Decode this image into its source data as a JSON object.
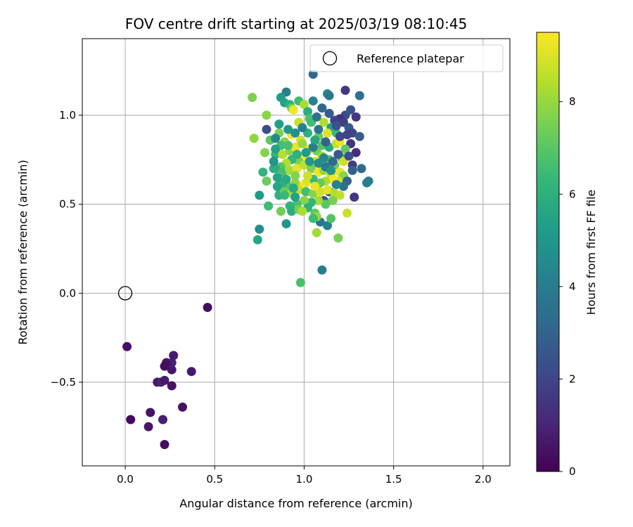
{
  "chart_data": {
    "type": "scatter",
    "title": "FOV centre drift starting at 2025/03/19 08:10:45",
    "xlabel": "Angular distance from reference (arcmin)",
    "ylabel": "Rotation from reference (arcmin)",
    "xlim": [
      -0.24,
      2.15
    ],
    "ylim": [
      -0.97,
      1.43
    ],
    "xticks": [
      0.0,
      0.5,
      1.0,
      1.5,
      2.0
    ],
    "xtick_labels": [
      "0.0",
      "0.5",
      "1.0",
      "1.5",
      "2.0"
    ],
    "yticks": [
      -0.5,
      0.0,
      0.5,
      1.0
    ],
    "ytick_labels": [
      "−0.5",
      "0.0",
      "0.5",
      "1.0"
    ],
    "grid": true,
    "legend_position": "top-right",
    "colorbar": {
      "label": "Hours from first FF file",
      "range": [
        0,
        9.5
      ],
      "ticks": [
        0,
        2,
        4,
        6,
        8
      ],
      "tick_labels": [
        "0",
        "2",
        "4",
        "6",
        "8"
      ],
      "colormap": "viridis"
    },
    "reference": {
      "label": "Reference platepar",
      "x": 0.0,
      "y": 0.0
    },
    "colormap_stops": [
      "#440154",
      "#482878",
      "#3e4989",
      "#31688e",
      "#26828e",
      "#1f9e89",
      "#35b779",
      "#6ece58",
      "#b5de2b",
      "#fde725"
    ],
    "points": [
      [
        0.46,
        -0.08,
        0.35
      ],
      [
        0.01,
        -0.3,
        0.4
      ],
      [
        0.03,
        -0.71,
        0.25
      ],
      [
        0.13,
        -0.75,
        0.55
      ],
      [
        0.14,
        -0.67,
        0.5
      ],
      [
        0.21,
        -0.71,
        0.8
      ],
      [
        0.22,
        -0.85,
        0.3
      ],
      [
        0.32,
        -0.64,
        0.5
      ],
      [
        0.18,
        -0.5,
        0.6
      ],
      [
        0.2,
        -0.5,
        0.9
      ],
      [
        0.22,
        -0.49,
        0.7
      ],
      [
        0.26,
        -0.52,
        0.45
      ],
      [
        0.26,
        -0.43,
        0.6
      ],
      [
        0.23,
        -0.4,
        0.75
      ],
      [
        0.26,
        -0.39,
        0.9
      ],
      [
        0.27,
        -0.35,
        0.7
      ],
      [
        0.37,
        -0.44,
        0.65
      ],
      [
        0.23,
        -0.39,
        0.5
      ],
      [
        0.22,
        -0.41,
        0.3
      ],
      [
        1.05,
        1.23,
        3.2
      ],
      [
        1.23,
        1.14,
        1.6
      ],
      [
        1.31,
        1.11,
        3.4
      ],
      [
        1.13,
        1.12,
        4.4
      ],
      [
        1.14,
        1.11,
        3.8
      ],
      [
        0.9,
        1.13,
        4.1
      ],
      [
        1.05,
        1.08,
        4.3
      ],
      [
        0.87,
        1.1,
        5.2
      ],
      [
        0.71,
        1.1,
        7.6
      ],
      [
        1.23,
        1.0,
        2.2
      ],
      [
        1.26,
        1.03,
        2.5
      ],
      [
        1.29,
        0.99,
        1.5
      ],
      [
        1.2,
        0.98,
        1.3
      ],
      [
        1.22,
        0.96,
        1.8
      ],
      [
        1.17,
        0.97,
        1.9
      ],
      [
        1.25,
        0.93,
        2.6
      ],
      [
        1.27,
        0.9,
        2.0
      ],
      [
        1.31,
        0.88,
        2.8
      ],
      [
        1.26,
        0.84,
        1.4
      ],
      [
        1.29,
        0.79,
        1.2
      ],
      [
        1.27,
        0.72,
        1.7
      ],
      [
        1.32,
        0.7,
        3.3
      ],
      [
        1.36,
        0.63,
        3.9
      ],
      [
        1.35,
        0.62,
        4.0
      ],
      [
        1.28,
        0.54,
        1.5
      ],
      [
        1.14,
        0.57,
        2.1
      ],
      [
        1.11,
        0.52,
        2.4
      ],
      [
        1.09,
        0.4,
        3.6
      ],
      [
        1.13,
        0.38,
        4.2
      ],
      [
        1.1,
        0.13,
        4.1
      ],
      [
        0.9,
        0.39,
        5.0
      ],
      [
        0.75,
        0.36,
        4.7
      ],
      [
        0.74,
        0.3,
        5.6
      ],
      [
        0.75,
        0.55,
        5.2
      ],
      [
        0.79,
        0.92,
        2.2
      ],
      [
        0.98,
        0.06,
        6.7
      ],
      [
        1.07,
        0.34,
        8.2
      ],
      [
        1.15,
        0.42,
        6.9
      ],
      [
        1.19,
        0.31,
        7.5
      ],
      [
        1.24,
        0.45,
        8.8
      ],
      [
        0.72,
        0.87,
        7.9
      ],
      [
        0.78,
        0.79,
        7.7
      ],
      [
        0.79,
        1.0,
        7.8
      ],
      [
        0.81,
        0.86,
        7.1
      ],
      [
        0.8,
        0.49,
        6.5
      ],
      [
        0.77,
        0.68,
        6.2
      ],
      [
        0.79,
        0.63,
        7.3
      ],
      [
        0.86,
        0.59,
        7.0
      ],
      [
        0.87,
        0.46,
        7.4
      ],
      [
        0.86,
        0.55,
        6.0
      ],
      [
        0.83,
        0.7,
        5.8
      ],
      [
        0.84,
        0.78,
        6.3
      ],
      [
        0.86,
        0.9,
        7.6
      ],
      [
        0.89,
        1.07,
        5.5
      ],
      [
        0.92,
        1.06,
        6.1
      ],
      [
        0.93,
        1.04,
        7.2
      ],
      [
        0.97,
        1.08,
        6.5
      ],
      [
        1.0,
        1.06,
        8.3
      ],
      [
        1.02,
        1.02,
        5.9
      ],
      [
        1.03,
        0.98,
        6.8
      ],
      [
        0.94,
        1.03,
        9.3
      ],
      [
        0.97,
        0.96,
        8.7
      ],
      [
        1.04,
        0.96,
        6.6
      ],
      [
        1.11,
        0.96,
        8.4
      ],
      [
        1.15,
        0.93,
        5.3
      ],
      [
        1.18,
        0.9,
        6.4
      ],
      [
        1.13,
        0.9,
        9.0
      ],
      [
        1.08,
        0.88,
        7.2
      ],
      [
        1.02,
        0.9,
        6.0
      ],
      [
        0.98,
        0.86,
        8.9
      ],
      [
        0.93,
        0.89,
        9.4
      ],
      [
        0.89,
        0.85,
        7.7
      ],
      [
        0.87,
        0.83,
        6.6
      ],
      [
        0.84,
        0.81,
        5.4
      ],
      [
        0.88,
        0.78,
        8.5
      ],
      [
        0.92,
        0.8,
        7.8
      ],
      [
        0.95,
        0.82,
        9.2
      ],
      [
        0.99,
        0.84,
        8.0
      ],
      [
        1.03,
        0.81,
        9.1
      ],
      [
        1.07,
        0.8,
        7.4
      ],
      [
        1.1,
        0.83,
        6.9
      ],
      [
        1.14,
        0.82,
        5.7
      ],
      [
        1.18,
        0.84,
        8.6
      ],
      [
        1.2,
        0.85,
        9.3
      ],
      [
        1.23,
        0.81,
        7.1
      ],
      [
        1.21,
        0.76,
        6.2
      ],
      [
        1.22,
        0.74,
        8.8
      ],
      [
        1.17,
        0.72,
        7.3
      ],
      [
        1.14,
        0.75,
        6.8
      ],
      [
        1.1,
        0.77,
        8.1
      ],
      [
        1.06,
        0.74,
        9.0
      ],
      [
        1.0,
        0.76,
        9.4
      ],
      [
        0.97,
        0.74,
        7.5
      ],
      [
        0.93,
        0.75,
        6.3
      ],
      [
        0.9,
        0.73,
        8.4
      ],
      [
        0.87,
        0.71,
        7.0
      ],
      [
        0.84,
        0.7,
        5.9
      ],
      [
        0.88,
        0.68,
        6.7
      ],
      [
        0.92,
        0.69,
        8.2
      ],
      [
        0.96,
        0.7,
        9.1
      ],
      [
        1.0,
        0.72,
        8.6
      ],
      [
        1.04,
        0.7,
        7.6
      ],
      [
        1.08,
        0.68,
        9.3
      ],
      [
        1.11,
        0.69,
        8.0
      ],
      [
        1.15,
        0.67,
        8.5
      ],
      [
        1.2,
        0.68,
        9.2
      ],
      [
        1.22,
        0.66,
        7.8
      ],
      [
        1.19,
        0.63,
        8.9
      ],
      [
        1.16,
        0.64,
        9.4
      ],
      [
        1.12,
        0.63,
        8.3
      ],
      [
        1.09,
        0.62,
        7.2
      ],
      [
        1.05,
        0.64,
        6.4
      ],
      [
        1.01,
        0.62,
        9.0
      ],
      [
        0.98,
        0.6,
        9.4
      ],
      [
        0.95,
        0.62,
        7.9
      ],
      [
        0.91,
        0.6,
        6.9
      ],
      [
        0.88,
        0.62,
        6.1
      ],
      [
        0.85,
        0.6,
        5.6
      ],
      [
        0.89,
        0.57,
        7.3
      ],
      [
        0.93,
        0.56,
        8.1
      ],
      [
        0.97,
        0.58,
        8.7
      ],
      [
        1.01,
        0.57,
        6.6
      ],
      [
        1.05,
        0.56,
        7.7
      ],
      [
        1.09,
        0.57,
        8.8
      ],
      [
        1.13,
        0.58,
        9.1
      ],
      [
        1.17,
        0.56,
        8.4
      ],
      [
        1.2,
        0.55,
        8.6
      ],
      [
        1.16,
        0.52,
        7.5
      ],
      [
        1.12,
        0.5,
        7.0
      ],
      [
        1.08,
        0.52,
        8.2
      ],
      [
        1.04,
        0.51,
        6.3
      ],
      [
        1.0,
        0.52,
        7.8
      ],
      [
        0.96,
        0.5,
        6.8
      ],
      [
        0.92,
        0.49,
        6.2
      ],
      [
        0.93,
        0.46,
        5.9
      ],
      [
        0.97,
        0.47,
        7.4
      ],
      [
        1.02,
        0.48,
        6.0
      ],
      [
        1.06,
        0.45,
        7.1
      ],
      [
        1.07,
        0.43,
        8.0
      ],
      [
        1.05,
        0.42,
        6.5
      ],
      [
        0.99,
        0.46,
        8.3
      ],
      [
        0.95,
        0.54,
        5.4
      ],
      [
        1.06,
        0.6,
        9.2
      ],
      [
        1.02,
        0.66,
        8.8
      ],
      [
        0.95,
        0.66,
        7.7
      ],
      [
        1.03,
        0.74,
        5.1
      ],
      [
        1.08,
        0.73,
        4.6
      ],
      [
        1.12,
        0.71,
        3.9
      ],
      [
        1.16,
        0.74,
        3.3
      ],
      [
        1.19,
        0.78,
        2.7
      ],
      [
        1.25,
        0.77,
        2.3
      ],
      [
        1.27,
        0.69,
        2.9
      ],
      [
        1.24,
        0.63,
        3.1
      ],
      [
        1.22,
        0.6,
        3.5
      ],
      [
        1.18,
        0.61,
        4.3
      ],
      [
        1.15,
        0.69,
        4.9
      ],
      [
        1.11,
        0.76,
        4.4
      ],
      [
        1.05,
        0.82,
        4.0
      ],
      [
        1.08,
        0.92,
        3.6
      ],
      [
        1.12,
        0.85,
        3.0
      ],
      [
        1.2,
        0.88,
        2.1
      ],
      [
        1.24,
        0.89,
        1.9
      ],
      [
        1.18,
        0.94,
        2.5
      ],
      [
        1.14,
        1.01,
        2.8
      ],
      [
        1.1,
        1.04,
        3.2
      ],
      [
        1.07,
        0.99,
        3.7
      ],
      [
        0.99,
        0.93,
        4.2
      ],
      [
        0.95,
        0.9,
        4.8
      ],
      [
        0.91,
        0.92,
        5.0
      ],
      [
        0.86,
        0.95,
        5.3
      ],
      [
        0.84,
        0.87,
        4.5
      ],
      [
        0.83,
        0.74,
        4.9
      ],
      [
        0.85,
        0.65,
        5.5
      ],
      [
        0.9,
        0.64,
        5.8
      ],
      [
        0.94,
        0.59,
        5.7
      ],
      [
        0.89,
        0.55,
        6.4
      ],
      [
        0.91,
        0.83,
        6.7
      ],
      [
        0.96,
        0.78,
        6.1
      ],
      [
        1.01,
        0.79,
        5.2
      ],
      [
        1.06,
        0.86,
        5.6
      ]
    ]
  }
}
